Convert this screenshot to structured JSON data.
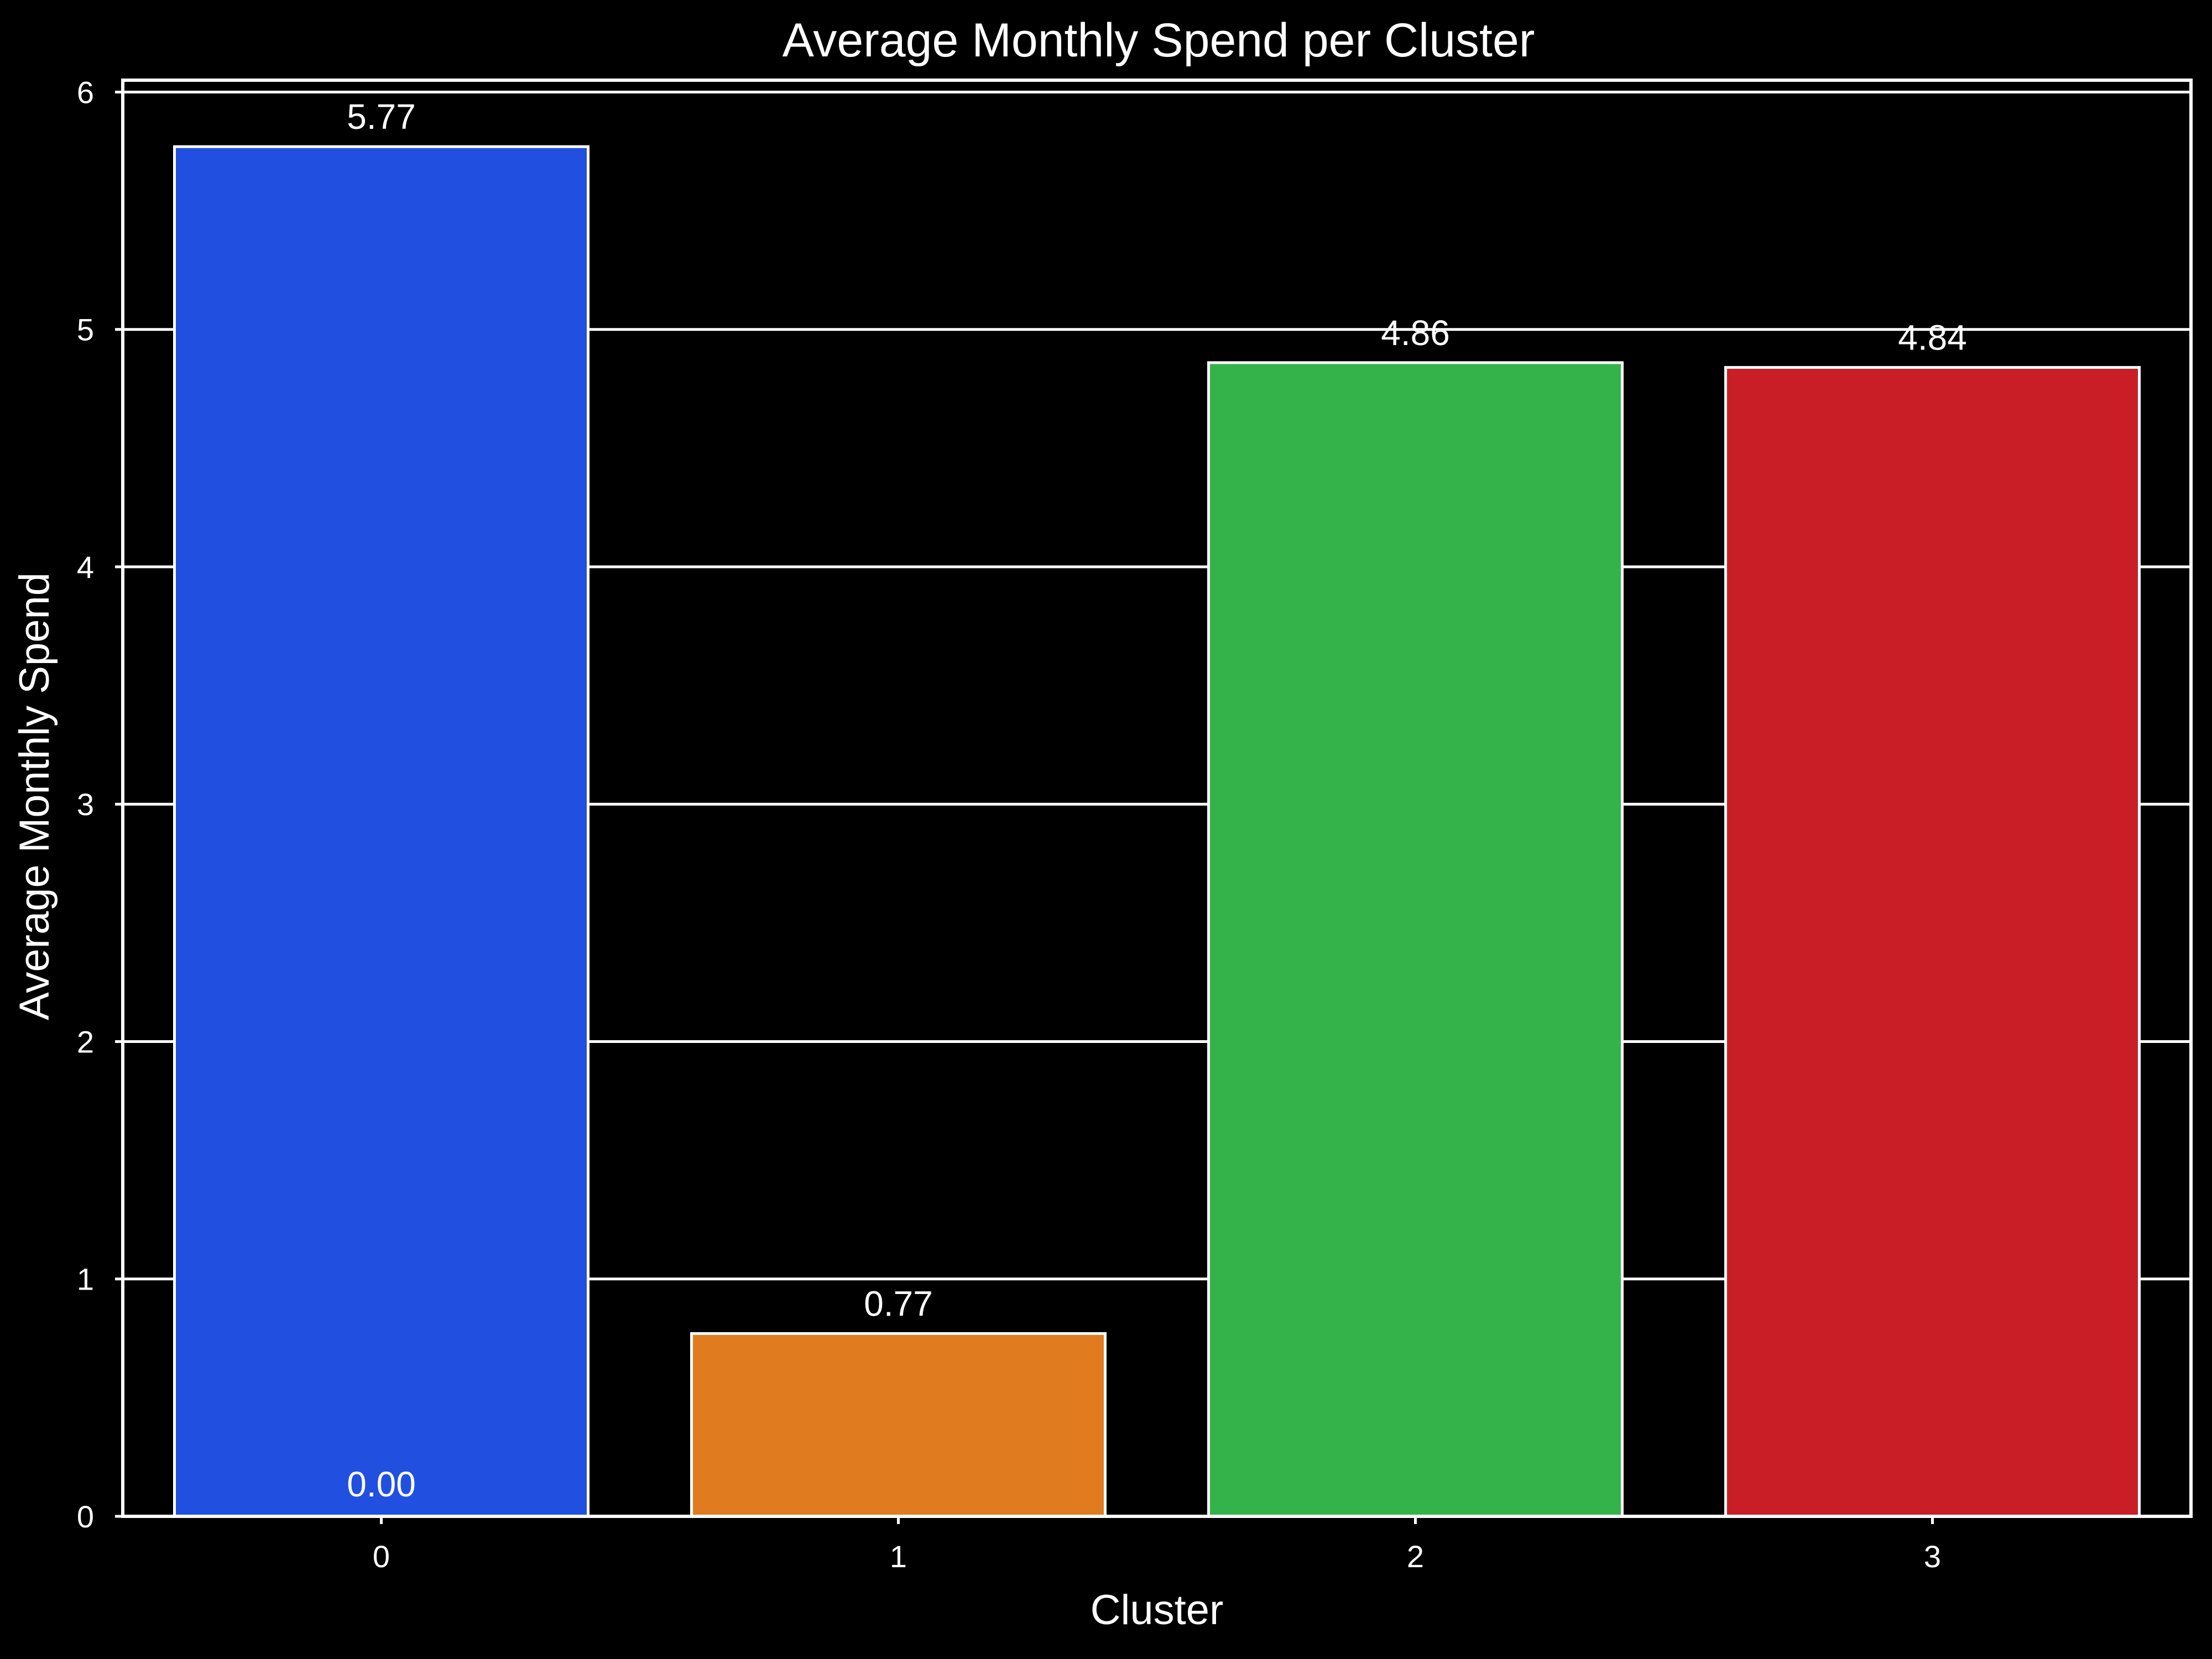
{
  "chart_data": {
    "type": "bar",
    "title": "Average Monthly Spend per Cluster",
    "xlabel": "Cluster",
    "ylabel": "Average Monthly Spend",
    "categories": [
      "0",
      "1",
      "2",
      "3"
    ],
    "values": [
      5.77,
      0.77,
      4.86,
      4.84
    ],
    "value_labels": [
      "5.77",
      "0.77",
      "4.86",
      "4.84"
    ],
    "extra_label": "0.00",
    "ylim": [
      0,
      6.05
    ],
    "yticks": [
      "0",
      "1",
      "2",
      "3",
      "4",
      "5",
      "6"
    ],
    "grid": "horizontal",
    "colors": {
      "background": "#000000",
      "foreground": "#ffffff",
      "bars": [
        "#2150e0",
        "#e07c1f",
        "#33b34a",
        "#c91e25"
      ]
    }
  }
}
